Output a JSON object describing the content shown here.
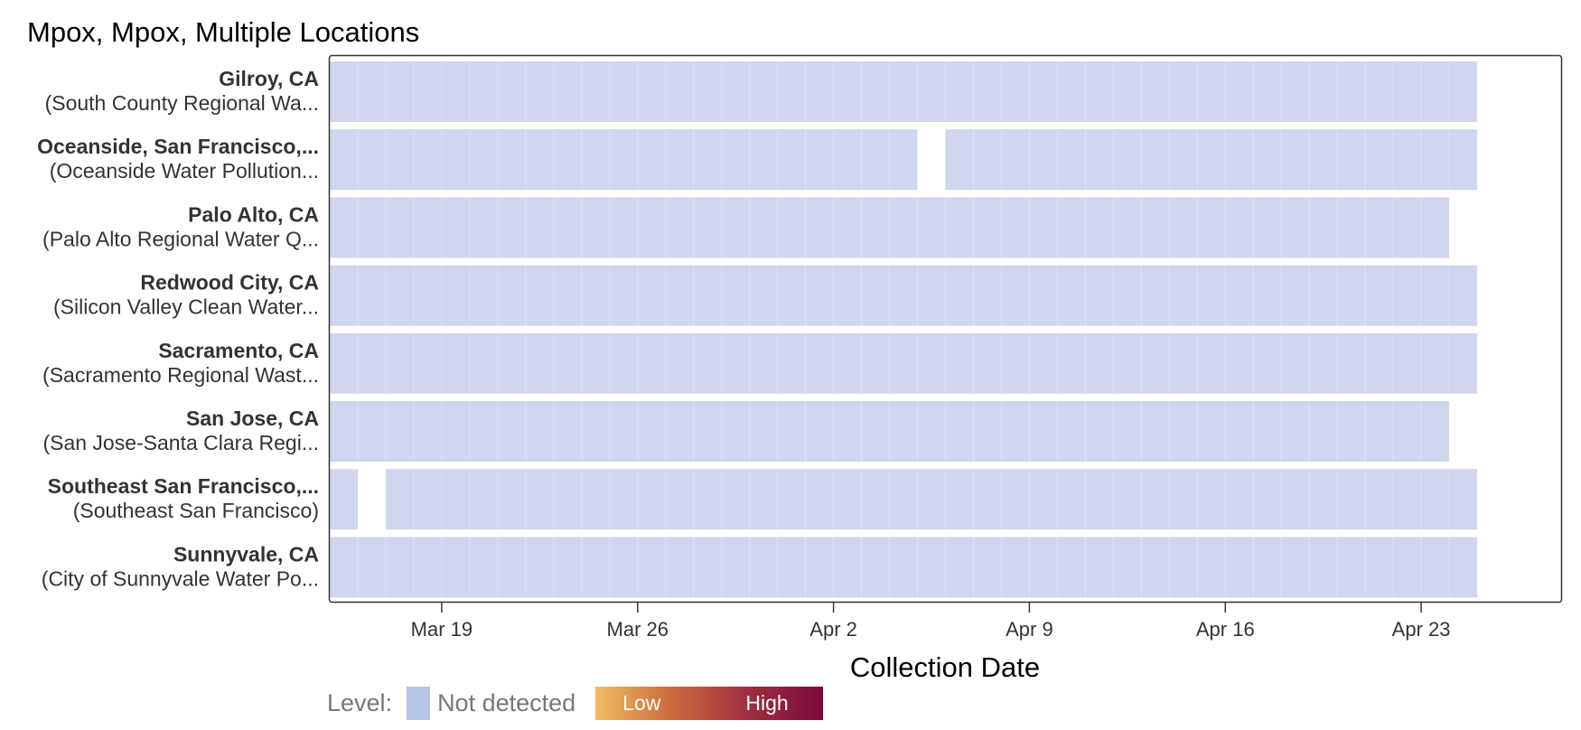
{
  "chart_data": {
    "type": "heatmap",
    "title": "Mpox, Mpox, Multiple Locations",
    "xlabel": "Collection Date",
    "x_range": [
      "2024-03-15",
      "2024-04-28"
    ],
    "x_ticks": [
      {
        "date": "2024-03-19",
        "label": "Mar 19"
      },
      {
        "date": "2024-03-26",
        "label": "Mar 26"
      },
      {
        "date": "2024-04-02",
        "label": "Apr 2"
      },
      {
        "date": "2024-04-09",
        "label": "Apr 9"
      },
      {
        "date": "2024-04-16",
        "label": "Apr 16"
      },
      {
        "date": "2024-04-23",
        "label": "Apr 23"
      }
    ],
    "rows": [
      {
        "location": "Gilroy, CA",
        "site": "(South County Regional Wa...",
        "segments": [
          [
            "2024-03-15",
            "2024-04-25"
          ]
        ]
      },
      {
        "location": "Oceanside, San Francisco,...",
        "site": "(Oceanside Water Pollution...",
        "segments": [
          [
            "2024-03-15",
            "2024-04-05"
          ],
          [
            "2024-04-06",
            "2024-04-25"
          ]
        ]
      },
      {
        "location": "Palo Alto, CA",
        "site": "(Palo Alto Regional Water Q...",
        "segments": [
          [
            "2024-03-15",
            "2024-04-24"
          ]
        ]
      },
      {
        "location": "Redwood City, CA",
        "site": "(Silicon Valley Clean Water...",
        "segments": [
          [
            "2024-03-15",
            "2024-04-25"
          ]
        ]
      },
      {
        "location": "Sacramento, CA",
        "site": "(Sacramento Regional Wast...",
        "segments": [
          [
            "2024-03-15",
            "2024-04-25"
          ]
        ]
      },
      {
        "location": "San Jose, CA",
        "site": "(San Jose-Santa Clara Regi...",
        "segments": [
          [
            "2024-03-15",
            "2024-04-24"
          ]
        ]
      },
      {
        "location": "Southeast San Francisco,...",
        "site": "(Southeast San Francisco)",
        "segments": [
          [
            "2024-03-15",
            "2024-03-16"
          ],
          [
            "2024-03-17",
            "2024-04-25"
          ]
        ]
      },
      {
        "location": "Sunnyvale, CA",
        "site": "(City of Sunnyvale Water Po...",
        "segments": [
          [
            "2024-03-15",
            "2024-04-25"
          ]
        ]
      }
    ],
    "level_value": "Not detected",
    "colors": {
      "not_detected": "#cfd6ee",
      "legend_not_detected": "#b7c3e7",
      "low": "#f2bd63",
      "high": "#7a0a3c"
    },
    "grid": false,
    "legend_position": "bottom"
  },
  "legend": {
    "label": "Level:",
    "not_detected": "Not detected",
    "low": "Low",
    "high": "High"
  }
}
